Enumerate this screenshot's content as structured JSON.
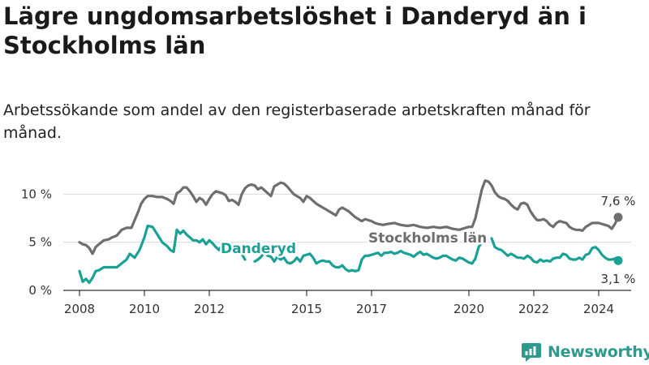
{
  "colors": {
    "stockholm": "#6e6e6e",
    "danderyd": "#1aa196",
    "grid": "#d9d9d9",
    "axis": "#333333",
    "brand": "#2e9a8e"
  },
  "logo": {
    "text": "Newsworthy",
    "icon": "newsworthy-logo-icon"
  },
  "chart_data": {
    "type": "line",
    "title": "Lägre ungdomsarbetslöshet i Danderyd än i Stockholms län",
    "subtitle": "Arbetssökande som andel av den registerbaserade arbetskraften månad för månad.",
    "xlabel": "",
    "ylabel": "",
    "xlim": [
      2007.5,
      2025.0
    ],
    "ylim": [
      0,
      11.8
    ],
    "x_ticks": [
      2008,
      2010,
      2012,
      2015,
      2017,
      2020,
      2022,
      2024
    ],
    "x_tick_labels": [
      "2008",
      "2010",
      "2012",
      "2015",
      "2017",
      "2020",
      "2022",
      "2024"
    ],
    "y_ticks": [
      0,
      5,
      10
    ],
    "y_tick_labels": [
      "0 %",
      "5 %",
      "10 %"
    ],
    "series": [
      {
        "name": "Stockholms län",
        "label": "Stockholms län",
        "end_label": "7,6 %",
        "end_value": 7.6,
        "points": [
          [
            2008.0,
            5.0
          ],
          [
            2008.1,
            4.8
          ],
          [
            2008.2,
            4.7
          ],
          [
            2008.3,
            4.4
          ],
          [
            2008.4,
            3.8
          ],
          [
            2008.5,
            4.5
          ],
          [
            2008.6,
            4.8
          ],
          [
            2008.75,
            5.2
          ],
          [
            2008.9,
            5.3
          ],
          [
            2009.0,
            5.5
          ],
          [
            2009.15,
            5.7
          ],
          [
            2009.3,
            6.3
          ],
          [
            2009.45,
            6.5
          ],
          [
            2009.6,
            6.5
          ],
          [
            2009.7,
            7.3
          ],
          [
            2009.8,
            8.1
          ],
          [
            2009.9,
            9.0
          ],
          [
            2010.0,
            9.5
          ],
          [
            2010.1,
            9.8
          ],
          [
            2010.25,
            9.8
          ],
          [
            2010.4,
            9.7
          ],
          [
            2010.55,
            9.7
          ],
          [
            2010.7,
            9.5
          ],
          [
            2010.8,
            9.3
          ],
          [
            2010.9,
            9.0
          ],
          [
            2011.0,
            10.1
          ],
          [
            2011.1,
            10.3
          ],
          [
            2011.2,
            10.7
          ],
          [
            2011.3,
            10.7
          ],
          [
            2011.4,
            10.3
          ],
          [
            2011.5,
            9.8
          ],
          [
            2011.6,
            9.2
          ],
          [
            2011.7,
            9.6
          ],
          [
            2011.8,
            9.4
          ],
          [
            2011.9,
            8.9
          ],
          [
            2012.0,
            9.5
          ],
          [
            2012.1,
            10.0
          ],
          [
            2012.2,
            10.3
          ],
          [
            2012.3,
            10.2
          ],
          [
            2012.4,
            10.1
          ],
          [
            2012.5,
            9.9
          ],
          [
            2012.6,
            9.3
          ],
          [
            2012.7,
            9.4
          ],
          [
            2012.8,
            9.2
          ],
          [
            2012.9,
            8.9
          ],
          [
            2013.0,
            10.0
          ],
          [
            2013.1,
            10.6
          ],
          [
            2013.2,
            10.9
          ],
          [
            2013.3,
            11.0
          ],
          [
            2013.4,
            10.9
          ],
          [
            2013.5,
            10.5
          ],
          [
            2013.6,
            10.7
          ],
          [
            2013.7,
            10.4
          ],
          [
            2013.8,
            10.1
          ],
          [
            2013.9,
            9.8
          ],
          [
            2014.0,
            10.8
          ],
          [
            2014.1,
            11.0
          ],
          [
            2014.2,
            11.2
          ],
          [
            2014.3,
            11.1
          ],
          [
            2014.4,
            10.8
          ],
          [
            2014.5,
            10.4
          ],
          [
            2014.6,
            10.0
          ],
          [
            2014.7,
            9.8
          ],
          [
            2014.8,
            9.6
          ],
          [
            2014.9,
            9.2
          ],
          [
            2015.0,
            9.8
          ],
          [
            2015.1,
            9.6
          ],
          [
            2015.2,
            9.3
          ],
          [
            2015.3,
            9.0
          ],
          [
            2015.4,
            8.8
          ],
          [
            2015.5,
            8.6
          ],
          [
            2015.6,
            8.4
          ],
          [
            2015.7,
            8.2
          ],
          [
            2015.8,
            8.0
          ],
          [
            2015.9,
            7.8
          ],
          [
            2016.0,
            8.4
          ],
          [
            2016.1,
            8.6
          ],
          [
            2016.2,
            8.4
          ],
          [
            2016.3,
            8.2
          ],
          [
            2016.4,
            7.9
          ],
          [
            2016.5,
            7.6
          ],
          [
            2016.6,
            7.4
          ],
          [
            2016.7,
            7.2
          ],
          [
            2016.8,
            7.4
          ],
          [
            2016.9,
            7.3
          ],
          [
            2017.0,
            7.2
          ],
          [
            2017.1,
            7.0
          ],
          [
            2017.2,
            6.9
          ],
          [
            2017.35,
            6.8
          ],
          [
            2017.5,
            6.9
          ],
          [
            2017.7,
            7.0
          ],
          [
            2017.9,
            6.8
          ],
          [
            2018.1,
            6.7
          ],
          [
            2018.3,
            6.8
          ],
          [
            2018.5,
            6.6
          ],
          [
            2018.7,
            6.5
          ],
          [
            2018.9,
            6.6
          ],
          [
            2019.1,
            6.5
          ],
          [
            2019.3,
            6.6
          ],
          [
            2019.5,
            6.4
          ],
          [
            2019.7,
            6.3
          ],
          [
            2019.9,
            6.5
          ],
          [
            2020.0,
            6.6
          ],
          [
            2020.1,
            6.6
          ],
          [
            2020.2,
            7.5
          ],
          [
            2020.3,
            9.0
          ],
          [
            2020.4,
            10.5
          ],
          [
            2020.5,
            11.4
          ],
          [
            2020.6,
            11.3
          ],
          [
            2020.7,
            10.9
          ],
          [
            2020.8,
            10.2
          ],
          [
            2020.9,
            9.8
          ],
          [
            2021.0,
            9.6
          ],
          [
            2021.1,
            9.5
          ],
          [
            2021.2,
            9.3
          ],
          [
            2021.3,
            8.9
          ],
          [
            2021.4,
            8.6
          ],
          [
            2021.5,
            8.4
          ],
          [
            2021.6,
            9.0
          ],
          [
            2021.7,
            9.1
          ],
          [
            2021.8,
            8.9
          ],
          [
            2021.9,
            8.2
          ],
          [
            2022.0,
            7.7
          ],
          [
            2022.1,
            7.3
          ],
          [
            2022.2,
            7.3
          ],
          [
            2022.3,
            7.4
          ],
          [
            2022.4,
            7.2
          ],
          [
            2022.5,
            6.8
          ],
          [
            2022.6,
            6.6
          ],
          [
            2022.7,
            7.0
          ],
          [
            2022.8,
            7.2
          ],
          [
            2022.9,
            7.1
          ],
          [
            2023.0,
            7.0
          ],
          [
            2023.1,
            6.6
          ],
          [
            2023.2,
            6.4
          ],
          [
            2023.3,
            6.3
          ],
          [
            2023.4,
            6.3
          ],
          [
            2023.5,
            6.2
          ],
          [
            2023.6,
            6.6
          ],
          [
            2023.7,
            6.8
          ],
          [
            2023.8,
            7.0
          ],
          [
            2023.9,
            7.0
          ],
          [
            2024.0,
            7.0
          ],
          [
            2024.1,
            6.9
          ],
          [
            2024.2,
            6.8
          ],
          [
            2024.3,
            6.7
          ],
          [
            2024.4,
            6.4
          ],
          [
            2024.5,
            6.9
          ],
          [
            2024.6,
            7.6
          ]
        ]
      },
      {
        "name": "Danderyd",
        "label": "Danderyd",
        "end_label": "3,1 %",
        "end_value": 3.1,
        "points": [
          [
            2008.0,
            2.0
          ],
          [
            2008.1,
            0.9
          ],
          [
            2008.2,
            1.2
          ],
          [
            2008.3,
            0.8
          ],
          [
            2008.4,
            1.3
          ],
          [
            2008.5,
            2.0
          ],
          [
            2008.6,
            2.1
          ],
          [
            2008.75,
            2.4
          ],
          [
            2008.9,
            2.4
          ],
          [
            2009.0,
            2.4
          ],
          [
            2009.15,
            2.4
          ],
          [
            2009.3,
            2.8
          ],
          [
            2009.45,
            3.2
          ],
          [
            2009.55,
            3.8
          ],
          [
            2009.7,
            3.4
          ],
          [
            2009.85,
            4.2
          ],
          [
            2010.0,
            5.5
          ],
          [
            2010.1,
            6.7
          ],
          [
            2010.25,
            6.6
          ],
          [
            2010.4,
            5.8
          ],
          [
            2010.55,
            5.0
          ],
          [
            2010.7,
            4.6
          ],
          [
            2010.8,
            4.2
          ],
          [
            2010.9,
            4.0
          ],
          [
            2011.0,
            6.3
          ],
          [
            2011.1,
            5.9
          ],
          [
            2011.2,
            6.2
          ],
          [
            2011.3,
            5.8
          ],
          [
            2011.4,
            5.5
          ],
          [
            2011.5,
            5.2
          ],
          [
            2011.6,
            5.2
          ],
          [
            2011.7,
            5.0
          ],
          [
            2011.8,
            5.3
          ],
          [
            2011.9,
            4.8
          ],
          [
            2012.0,
            5.2
          ],
          [
            2012.1,
            4.9
          ],
          [
            2012.2,
            4.5
          ],
          [
            2012.3,
            4.2
          ],
          [
            2012.4,
            4.8
          ],
          null,
          [
            2012.55,
            4.3
          ],
          [
            2012.6,
            4.8
          ],
          null,
          [
            2013.0,
            3.8
          ],
          [
            2013.1,
            3.2
          ],
          null,
          [
            2013.4,
            3.0
          ],
          [
            2013.5,
            3.2
          ],
          [
            2013.6,
            3.5
          ],
          [
            2013.7,
            4.0
          ],
          [
            2013.8,
            3.6
          ],
          [
            2013.9,
            3.5
          ],
          [
            2014.0,
            3.0
          ],
          [
            2014.1,
            3.5
          ],
          [
            2014.2,
            3.2
          ],
          [
            2014.3,
            3.4
          ],
          [
            2014.4,
            2.9
          ],
          [
            2014.5,
            2.8
          ],
          [
            2014.6,
            3.0
          ],
          [
            2014.7,
            3.4
          ],
          [
            2014.8,
            3.0
          ],
          [
            2014.9,
            3.6
          ],
          [
            2015.0,
            3.7
          ],
          [
            2015.1,
            3.8
          ],
          [
            2015.2,
            3.4
          ],
          [
            2015.3,
            2.8
          ],
          [
            2015.4,
            3.0
          ],
          [
            2015.5,
            3.1
          ],
          [
            2015.6,
            3.0
          ],
          [
            2015.7,
            3.0
          ],
          [
            2015.8,
            2.6
          ],
          [
            2015.9,
            2.4
          ],
          [
            2016.0,
            2.4
          ],
          [
            2016.1,
            2.6
          ],
          [
            2016.2,
            2.2
          ],
          [
            2016.3,
            2.0
          ],
          [
            2016.4,
            2.1
          ],
          [
            2016.5,
            2.0
          ],
          [
            2016.6,
            2.1
          ],
          [
            2016.7,
            3.2
          ],
          [
            2016.8,
            3.6
          ],
          [
            2016.9,
            3.6
          ],
          [
            2017.0,
            3.7
          ],
          [
            2017.1,
            3.8
          ],
          [
            2017.2,
            3.9
          ],
          [
            2017.3,
            3.6
          ],
          [
            2017.4,
            3.9
          ],
          [
            2017.5,
            3.9
          ],
          [
            2017.6,
            4.0
          ],
          [
            2017.7,
            3.8
          ],
          [
            2017.8,
            3.9
          ],
          [
            2017.9,
            4.1
          ],
          [
            2018.0,
            3.9
          ],
          [
            2018.1,
            3.8
          ],
          [
            2018.2,
            3.7
          ],
          [
            2018.3,
            3.5
          ],
          [
            2018.4,
            3.8
          ],
          [
            2018.5,
            4.0
          ],
          [
            2018.6,
            3.7
          ],
          [
            2018.7,
            3.8
          ],
          [
            2018.8,
            3.6
          ],
          [
            2018.9,
            3.4
          ],
          [
            2019.0,
            3.3
          ],
          [
            2019.1,
            3.4
          ],
          [
            2019.2,
            3.6
          ],
          [
            2019.3,
            3.6
          ],
          [
            2019.4,
            3.4
          ],
          [
            2019.5,
            3.2
          ],
          [
            2019.6,
            3.1
          ],
          [
            2019.7,
            3.4
          ],
          [
            2019.8,
            3.3
          ],
          [
            2019.9,
            3.1
          ],
          [
            2020.0,
            2.9
          ],
          [
            2020.1,
            2.8
          ],
          [
            2020.2,
            3.3
          ],
          [
            2020.3,
            4.5
          ],
          [
            2020.4,
            5.0
          ],
          null,
          [
            2020.7,
            5.4
          ],
          [
            2020.8,
            4.5
          ],
          [
            2020.9,
            4.3
          ],
          [
            2021.0,
            4.2
          ],
          [
            2021.1,
            3.9
          ],
          [
            2021.2,
            3.6
          ],
          [
            2021.3,
            3.8
          ],
          [
            2021.4,
            3.6
          ],
          [
            2021.5,
            3.4
          ],
          [
            2021.6,
            3.4
          ],
          [
            2021.7,
            3.3
          ],
          [
            2021.8,
            3.6
          ],
          [
            2021.9,
            3.4
          ],
          [
            2022.0,
            3.0
          ],
          [
            2022.1,
            2.9
          ],
          [
            2022.2,
            3.2
          ],
          [
            2022.3,
            3.0
          ],
          [
            2022.4,
            3.1
          ],
          [
            2022.5,
            3.0
          ],
          [
            2022.6,
            3.3
          ],
          [
            2022.7,
            3.4
          ],
          [
            2022.8,
            3.4
          ],
          [
            2022.9,
            3.8
          ],
          [
            2023.0,
            3.7
          ],
          [
            2023.1,
            3.3
          ],
          [
            2023.2,
            3.2
          ],
          [
            2023.3,
            3.2
          ],
          [
            2023.4,
            3.4
          ],
          [
            2023.5,
            3.2
          ],
          [
            2023.6,
            3.7
          ],
          [
            2023.7,
            3.8
          ],
          [
            2023.8,
            4.4
          ],
          [
            2023.9,
            4.5
          ],
          [
            2024.0,
            4.2
          ],
          [
            2024.1,
            3.7
          ],
          [
            2024.2,
            3.4
          ],
          [
            2024.3,
            3.2
          ],
          [
            2024.4,
            3.2
          ],
          [
            2024.5,
            3.3
          ],
          [
            2024.6,
            3.1
          ]
        ]
      }
    ]
  }
}
